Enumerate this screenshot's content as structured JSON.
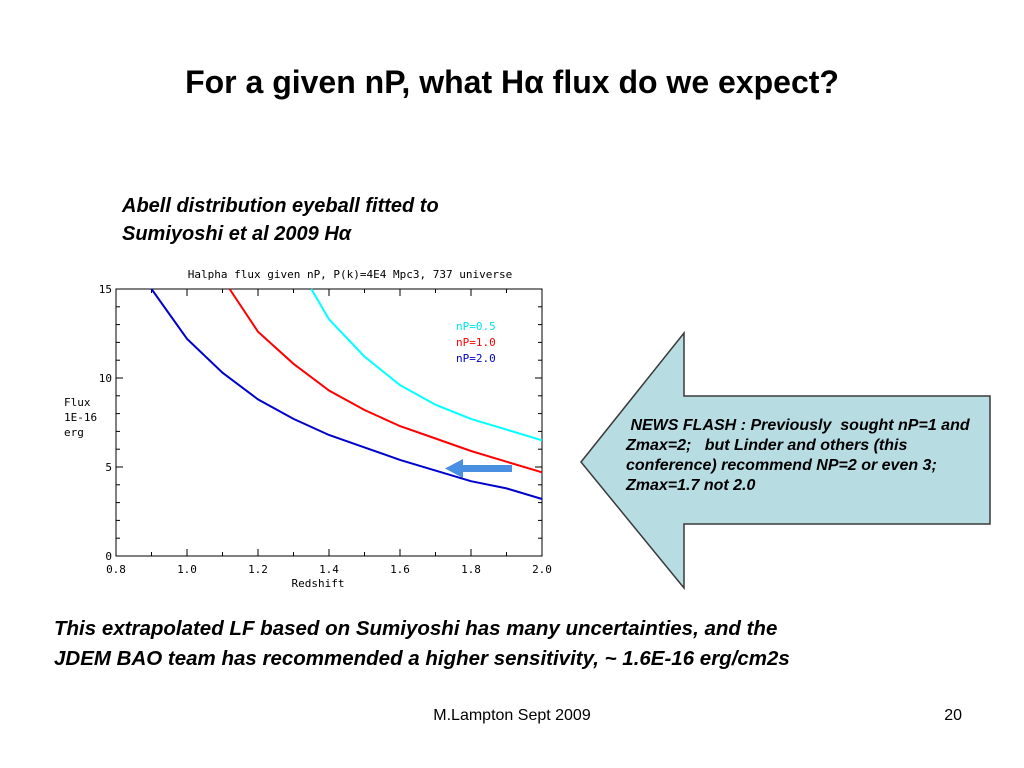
{
  "slide": {
    "title": "For a given nP, what Hα flux do we expect?",
    "caption_line1": "Abell distribution eyeball fitted to",
    "caption_line2": "Sumiyoshi et al 2009 Hα",
    "news_flash": " NEWS FLASH : Previously  sought nP=1 and Zmax=2;   but Linder and others (this conference) recommend NP=2 or even 3; Zmax=1.7 not 2.0",
    "bottom_text_line1": "This extrapolated LF based on Sumiyoshi has many uncertainties, and the",
    "bottom_text_line2": "JDEM BAO team has recommended a higher sensitivity, ~ 1.6E-16 erg/cm2s",
    "footer_author": "M.Lampton Sept 2009",
    "footer_page": "20",
    "arrow_fill": "#b7dde3",
    "indicator_arrow_color": "#4a90e2"
  },
  "chart_data": {
    "type": "line",
    "title": "Halpha flux given nP, P(k)=4E4 Mpc3, 737 universe",
    "xlabel": "Redshift",
    "ylabel_lines": [
      "Flux",
      "1E-16",
      "erg"
    ],
    "xlim": [
      0.8,
      2.0
    ],
    "ylim": [
      0,
      15
    ],
    "xticks": [
      "0.8",
      "1.0",
      "1.2",
      "1.4",
      "1.6",
      "1.8",
      "2.0"
    ],
    "yticks": [
      "0",
      "5",
      "10",
      "15"
    ],
    "legend_position": "top-right",
    "grid": false,
    "series": [
      {
        "name": "nP=0.5",
        "color": "#00ffff",
        "x": [
          1.35,
          1.4,
          1.5,
          1.6,
          1.7,
          1.8,
          1.9,
          2.0
        ],
        "y": [
          15.0,
          13.3,
          11.2,
          9.6,
          8.5,
          7.7,
          7.1,
          6.5
        ]
      },
      {
        "name": "nP=1.0",
        "color": "#ff0000",
        "x": [
          1.12,
          1.2,
          1.3,
          1.4,
          1.5,
          1.6,
          1.7,
          1.8,
          1.9,
          2.0
        ],
        "y": [
          15.0,
          12.6,
          10.8,
          9.3,
          8.2,
          7.3,
          6.6,
          5.9,
          5.3,
          4.7
        ]
      },
      {
        "name": "nP=2.0",
        "color": "#0000cc",
        "x": [
          0.9,
          1.0,
          1.1,
          1.2,
          1.3,
          1.4,
          1.5,
          1.6,
          1.7,
          1.8,
          1.9,
          2.0
        ],
        "y": [
          15.0,
          12.2,
          10.3,
          8.8,
          7.7,
          6.8,
          6.1,
          5.4,
          4.8,
          4.2,
          3.8,
          3.2
        ]
      }
    ],
    "annotation": "arrow pointing left at flux ≈ 5 near redshift 1.7"
  }
}
